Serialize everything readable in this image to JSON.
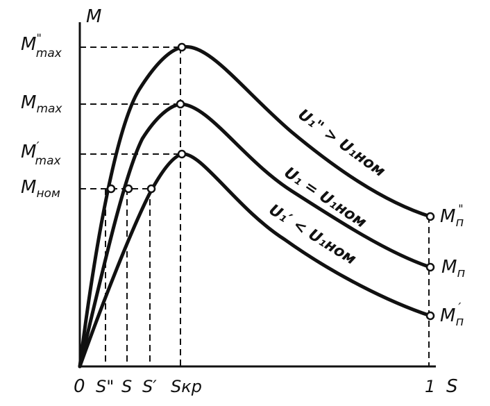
{
  "axes": {
    "y_label": "M",
    "x_label": "S",
    "origin_label": "0"
  },
  "y_ticks": {
    "m_max_high": {
      "base": "M",
      "sub": "max",
      "mark": "\""
    },
    "m_max": {
      "base": "M",
      "sub": "max",
      "mark": ""
    },
    "m_max_low": {
      "base": "M",
      "sub": "max",
      "mark": "′"
    },
    "m_nom": {
      "base": "M",
      "sub": "ном",
      "mark": ""
    }
  },
  "x_ticks": {
    "s_high": "S\"",
    "s": "S",
    "s_low": "S′",
    "s_kr": "Sкр",
    "one": "1"
  },
  "curves": {
    "high": {
      "label_main": "U₁\"",
      "label_rest": " > U₁ном"
    },
    "nominal": {
      "label_main": "U₁",
      "label_rest": " = U₁ном"
    },
    "low": {
      "label_main": "U₁′",
      "label_rest": " < U₁ном"
    }
  },
  "end_labels": {
    "high": {
      "base": "M",
      "sub": "п",
      "mark": "\""
    },
    "nominal": {
      "base": "M",
      "sub": "п",
      "mark": ""
    },
    "low": {
      "base": "M",
      "sub": "п",
      "mark": "′"
    }
  },
  "colors": {
    "ink": "#111111",
    "background": "#ffffff"
  }
}
